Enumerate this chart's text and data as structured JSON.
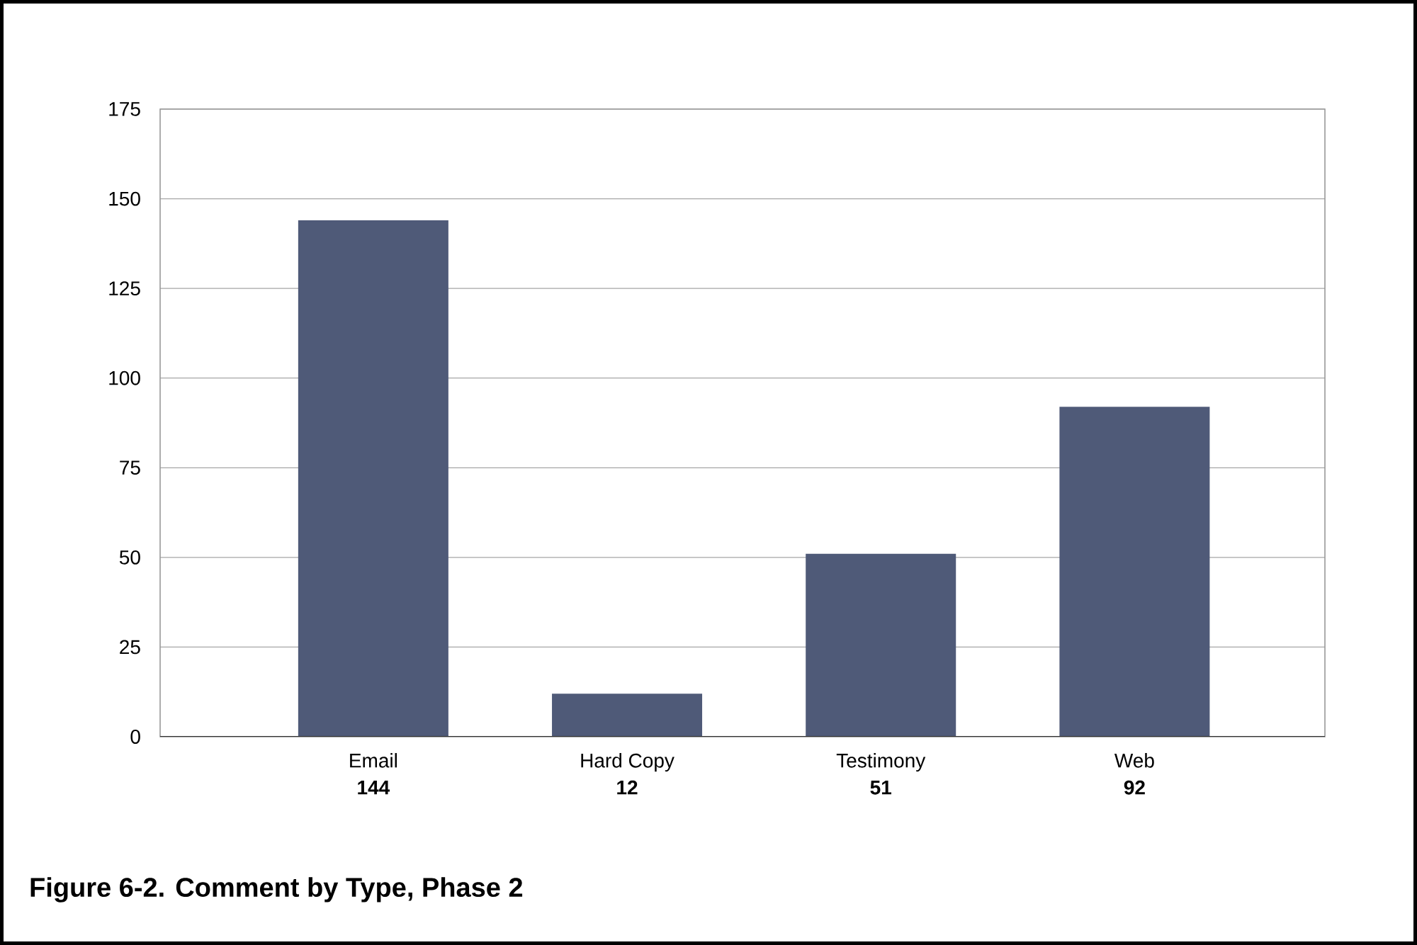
{
  "chart_data": {
    "type": "bar",
    "title": "Figure 6-2. Comment by Type, Phase 2",
    "categories": [
      "Email",
      "Hard Copy",
      "Testimony",
      "Web"
    ],
    "values": [
      144,
      12,
      51,
      92
    ],
    "color": "#4f5a78",
    "ylim": [
      0,
      175
    ],
    "yticks": [
      0,
      25,
      50,
      75,
      100,
      125,
      150,
      175
    ],
    "grid": "y",
    "data_labels": true
  }
}
